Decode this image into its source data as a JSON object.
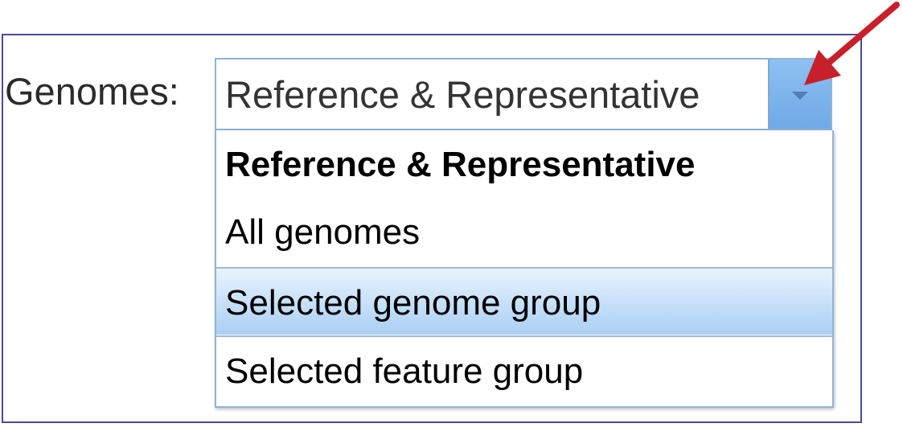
{
  "form": {
    "label": "Genomes:",
    "select": {
      "current_value": "Reference & Representative",
      "trigger_icon": "chevron-down-icon"
    },
    "dropdown": {
      "options": [
        {
          "label": "Reference & Representative",
          "selected": true
        },
        {
          "label": "All genomes",
          "selected": false
        },
        {
          "label": "Selected genome group",
          "selected": false,
          "hovered": true
        },
        {
          "label": "Selected feature group",
          "selected": false
        }
      ]
    }
  },
  "annotation": {
    "icon": "red-arrow-icon",
    "color": "#c8202a"
  },
  "colors": {
    "frame_border": "#4a4a9a",
    "select_border": "#8fb4d6",
    "trigger_fill": "#7fb5ec",
    "hover_fill": "#a9cff4"
  }
}
